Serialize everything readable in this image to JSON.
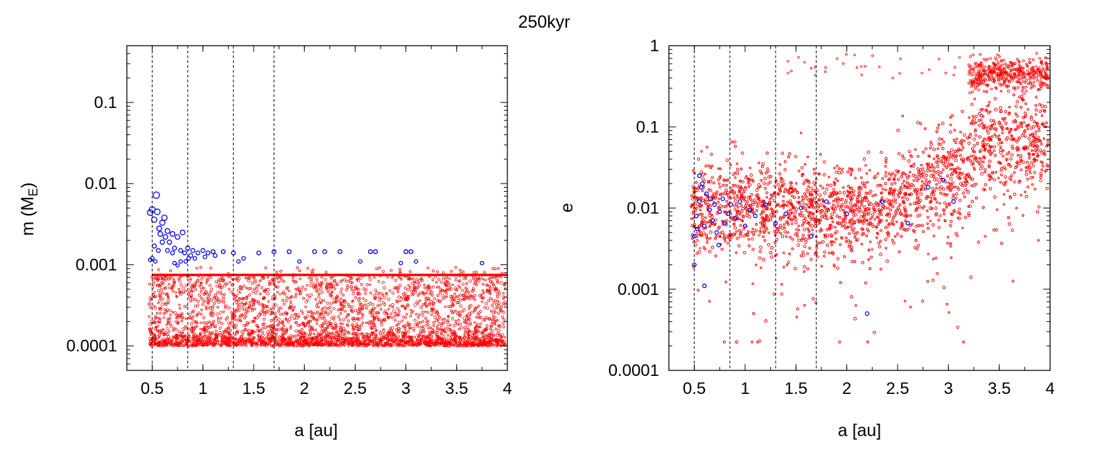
{
  "figure": {
    "title": "250kyr"
  },
  "colors": {
    "embryo": "#0000ff",
    "planetesimal": "#ff0000",
    "axis": "#000000"
  },
  "chart_data": [
    {
      "type": "scatter",
      "name": "mass-vs-semimajor-axis",
      "xlabel": "a [au]",
      "ylabel_main": "m (M",
      "ylabel_sub": "E",
      "ylabel_close": ")",
      "xscale": "linear",
      "yscale": "log",
      "xlim": [
        0.25,
        4.0
      ],
      "ylim": [
        5e-05,
        0.5
      ],
      "xticks": [
        0.5,
        1,
        1.5,
        2,
        2.5,
        3,
        3.5,
        4
      ],
      "xtick_labels": [
        "0.5",
        "1",
        "1.5",
        "2",
        "2.5",
        "3",
        "3.5",
        "4"
      ],
      "yticks": [
        0.0001,
        0.001,
        0.01,
        0.1
      ],
      "ytick_labels": [
        "0.0001",
        "0.001",
        "0.01",
        "0.1"
      ],
      "vlines": [
        0.5,
        0.85,
        1.3,
        1.7
      ],
      "planetesimal_line": 0.00075,
      "series": [
        {
          "name": "embryos",
          "color": "#0000ff",
          "points": [
            [
              0.48,
              0.0044
            ],
            [
              0.5,
              0.0048
            ],
            [
              0.52,
              0.0036
            ],
            [
              0.54,
              0.0072
            ],
            [
              0.55,
              0.0045
            ],
            [
              0.57,
              0.0028
            ],
            [
              0.58,
              0.0024
            ],
            [
              0.6,
              0.0033
            ],
            [
              0.62,
              0.0038
            ],
            [
              0.63,
              0.0022
            ],
            [
              0.65,
              0.0026
            ],
            [
              0.67,
              0.0019
            ],
            [
              0.7,
              0.0024
            ],
            [
              0.72,
              0.0016
            ],
            [
              0.75,
              0.0022
            ],
            [
              0.78,
              0.0015
            ],
            [
              0.8,
              0.0025
            ],
            [
              0.52,
              0.0017
            ],
            [
              0.56,
              0.0015
            ],
            [
              0.6,
              0.0019
            ],
            [
              0.65,
              0.0015
            ],
            [
              0.7,
              0.0014
            ],
            [
              0.82,
              0.0014
            ],
            [
              0.5,
              0.0012
            ],
            [
              0.48,
              0.00115
            ],
            [
              0.53,
              0.0011
            ],
            [
              0.72,
              0.00105
            ],
            [
              0.75,
              0.00098
            ],
            [
              0.78,
              0.0011
            ],
            [
              0.85,
              0.0016
            ],
            [
              0.88,
              0.0013
            ],
            [
              0.9,
              0.0015
            ],
            [
              0.95,
              0.0014
            ],
            [
              1.0,
              0.0015
            ],
            [
              1.05,
              0.0014
            ],
            [
              1.1,
              0.00145
            ],
            [
              1.2,
              0.00145
            ],
            [
              1.3,
              0.0014
            ],
            [
              1.35,
              0.0011
            ],
            [
              1.4,
              0.0012
            ],
            [
              1.55,
              0.0014
            ],
            [
              1.7,
              0.00145
            ],
            [
              1.85,
              0.00145
            ],
            [
              1.95,
              0.0011
            ],
            [
              2.1,
              0.00145
            ],
            [
              2.2,
              0.00145
            ],
            [
              2.35,
              0.00145
            ],
            [
              2.55,
              0.0011
            ],
            [
              2.65,
              0.00145
            ],
            [
              2.7,
              0.00145
            ],
            [
              2.95,
              0.00105
            ],
            [
              3.0,
              0.00145
            ],
            [
              3.05,
              0.00145
            ],
            [
              3.1,
              0.0011
            ],
            [
              3.75,
              0.00105
            ],
            [
              0.83,
              0.0011
            ],
            [
              0.92,
              0.0012
            ],
            [
              1.02,
              0.00125
            ],
            [
              1.12,
              0.0013
            ],
            [
              0.86,
              0.0012
            ]
          ]
        }
      ]
    },
    {
      "type": "scatter",
      "name": "eccentricity-vs-semimajor-axis",
      "xlabel": "a [au]",
      "ylabel": "e",
      "xscale": "linear",
      "yscale": "log",
      "xlim": [
        0.25,
        4.0
      ],
      "ylim": [
        0.0001,
        1.0
      ],
      "xticks": [
        0.5,
        1,
        1.5,
        2,
        2.5,
        3,
        3.5,
        4
      ],
      "xtick_labels": [
        "0.5",
        "1",
        "1.5",
        "2",
        "2.5",
        "3",
        "3.5",
        "4"
      ],
      "yticks": [
        0.0001,
        0.001,
        0.01,
        0.1,
        1
      ],
      "ytick_labels": [
        "0.0001",
        "0.001",
        "0.01",
        "0.1",
        "1"
      ],
      "vlines": [
        0.5,
        0.85,
        1.3,
        1.7
      ],
      "series": [
        {
          "name": "embryos",
          "color": "#0000ff",
          "points": [
            [
              0.5,
              0.0045
            ],
            [
              0.52,
              0.008
            ],
            [
              0.55,
              0.012
            ],
            [
              0.58,
              0.02
            ],
            [
              0.6,
              0.006
            ],
            [
              0.62,
              0.015
            ],
            [
              0.65,
              0.0095
            ],
            [
              0.68,
              0.007
            ],
            [
              0.7,
              0.011
            ],
            [
              0.72,
              0.005
            ],
            [
              0.75,
              0.009
            ],
            [
              0.78,
              0.013
            ],
            [
              0.8,
              0.0065
            ],
            [
              0.83,
              0.0085
            ],
            [
              0.86,
              0.011
            ],
            [
              0.9,
              0.0075
            ],
            [
              0.95,
              0.012
            ],
            [
              1.0,
              0.006
            ],
            [
              1.05,
              0.0095
            ],
            [
              1.1,
              0.008
            ],
            [
              1.2,
              0.011
            ],
            [
              1.3,
              0.0065
            ],
            [
              1.4,
              0.0085
            ],
            [
              1.55,
              0.01
            ],
            [
              1.65,
              0.0045
            ],
            [
              1.8,
              0.012
            ],
            [
              2.0,
              0.0085
            ],
            [
              2.2,
              0.0005
            ],
            [
              2.35,
              0.012
            ],
            [
              2.6,
              0.0065
            ],
            [
              2.8,
              0.018
            ],
            [
              2.95,
              0.022
            ],
            [
              3.05,
              0.012
            ],
            [
              0.5,
              0.002
            ],
            [
              0.55,
              0.025
            ],
            [
              0.6,
              0.0011
            ],
            [
              0.53,
              0.0055
            ],
            [
              0.57,
              0.018
            ],
            [
              0.66,
              0.013
            ],
            [
              0.74,
              0.0035
            ]
          ]
        }
      ]
    }
  ]
}
